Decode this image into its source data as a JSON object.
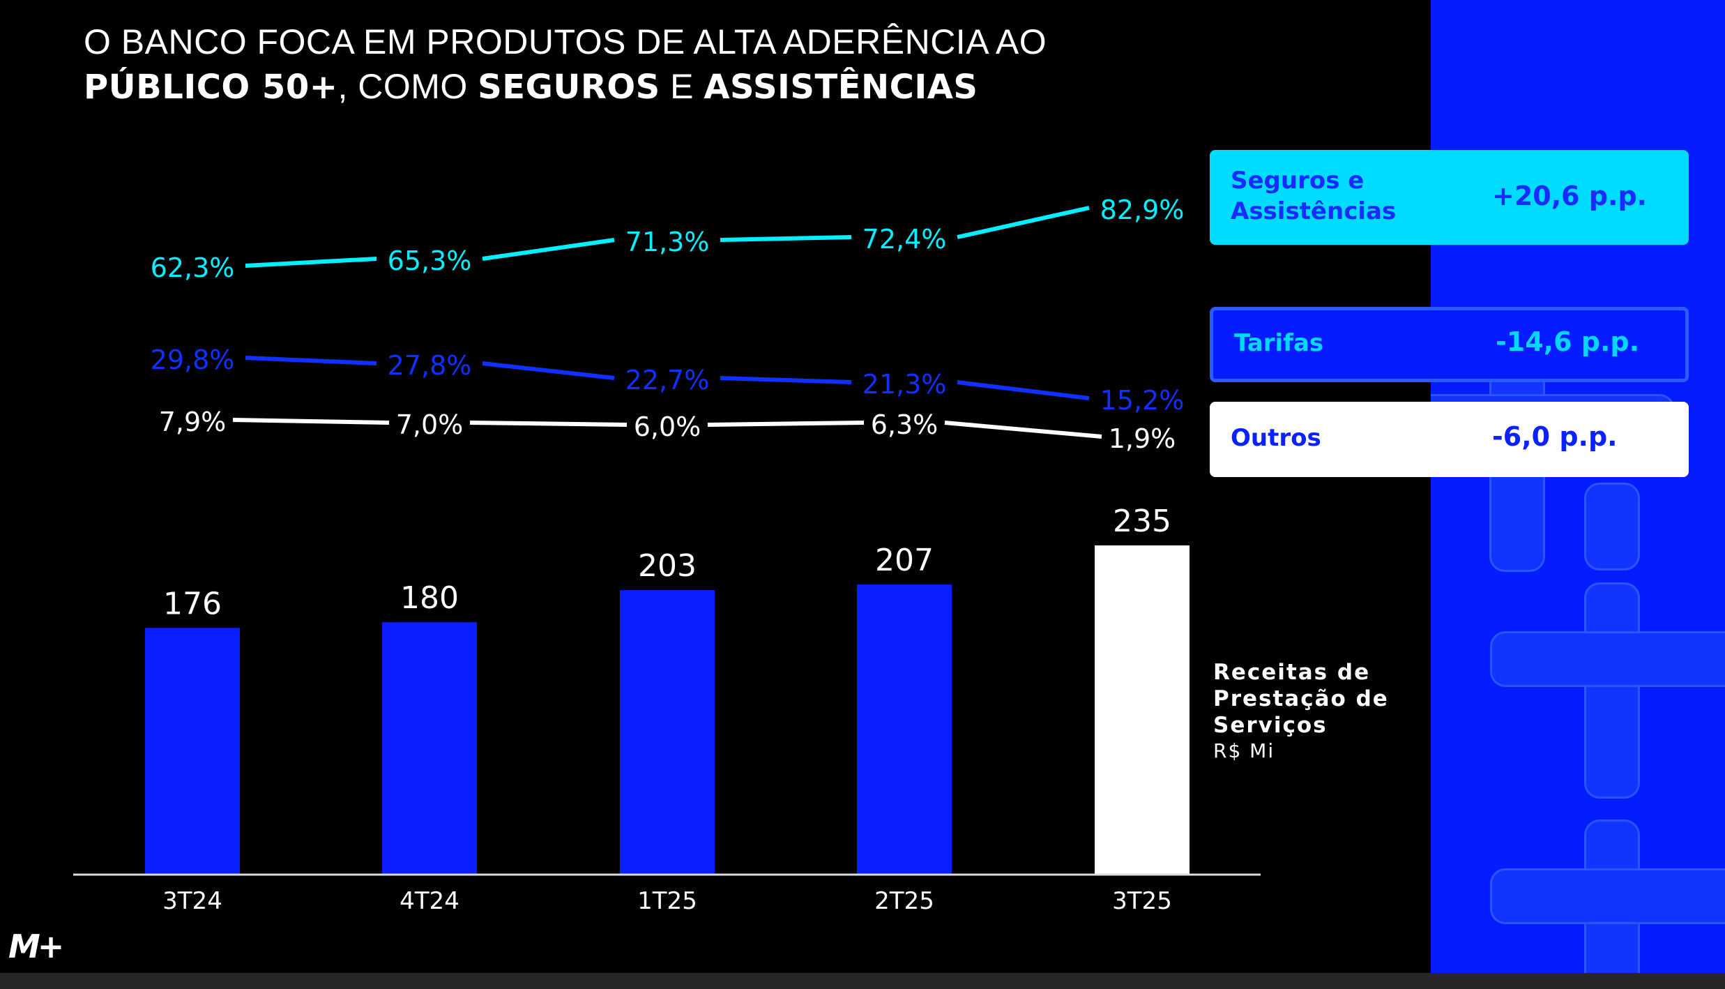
{
  "title": {
    "line1": "O BANCO FOCA EM PRODUTOS DE ALTA ADERÊNCIA AO",
    "line2_parts": [
      {
        "text": "PÚBLICO 50+",
        "bold": true
      },
      {
        "text": ", COMO ",
        "bold": false
      },
      {
        "text": "SEGUROS",
        "bold": true
      },
      {
        "text": " E ",
        "bold": false
      },
      {
        "text": "ASSISTÊNCIAS",
        "bold": true
      }
    ]
  },
  "colors": {
    "background": "#000000",
    "bar_blue": "#0a1eff",
    "bar_highlight": "#ffffff",
    "cyan": "#00f0ff",
    "blue_line": "#1030ff",
    "white_line": "#ffffff",
    "panel_blue": "#051cff"
  },
  "summary_boxes": [
    {
      "label": "Seguros e Assistências",
      "label_lines": [
        "Seguros e",
        "Assistências"
      ],
      "value": "+20,6 p.p."
    },
    {
      "label": "Tarifas",
      "label_lines": [
        "Tarifas"
      ],
      "value": "-14,6 p.p."
    },
    {
      "label": "Outros",
      "label_lines": [
        "Outros"
      ],
      "value": "-6,0 p.p."
    }
  ],
  "bar_legend": {
    "title_lines": [
      "Receitas de",
      "Prestação de",
      "Serviços"
    ],
    "unit": "R$ Mi"
  },
  "logo": {
    "text": "M+"
  },
  "chart_data": {
    "type": "bar+line",
    "title": "O BANCO FOCA EM PRODUTOS DE ALTA ADERÊNCIA AO PÚBLICO 50+, COMO SEGUROS E ASSISTÊNCIAS",
    "categories": [
      "3T24",
      "4T24",
      "1T25",
      "2T25",
      "3T25"
    ],
    "bars": {
      "name": "Receitas de Prestação de Serviços (R$ Mi)",
      "values": [
        176,
        180,
        203,
        207,
        235
      ],
      "labels": [
        "176",
        "180",
        "203",
        "207",
        "235"
      ],
      "highlight_index": 4
    },
    "series": [
      {
        "name": "Seguros e Assistências",
        "values": [
          62.3,
          65.3,
          71.3,
          72.4,
          82.9
        ],
        "labels": [
          "62,3%",
          "65,3%",
          "71,3%",
          "72,4%",
          "82,9%"
        ],
        "color": "#00f0ff"
      },
      {
        "name": "Tarifas",
        "values": [
          29.8,
          27.8,
          22.7,
          21.3,
          15.2
        ],
        "labels": [
          "29,8%",
          "27,8%",
          "22,7%",
          "21,3%",
          "15,2%"
        ],
        "color": "#1030ff"
      },
      {
        "name": "Outros",
        "values": [
          7.9,
          7.0,
          6.0,
          6.3,
          1.9
        ],
        "labels": [
          "7,9%",
          "7,0%",
          "6,0%",
          "6,3%",
          "1,9%"
        ],
        "color": "#ffffff"
      }
    ],
    "xlabel": "",
    "ylabel": "",
    "ylim_bars": [
      0,
      235
    ],
    "grid": false,
    "legend": "right"
  }
}
